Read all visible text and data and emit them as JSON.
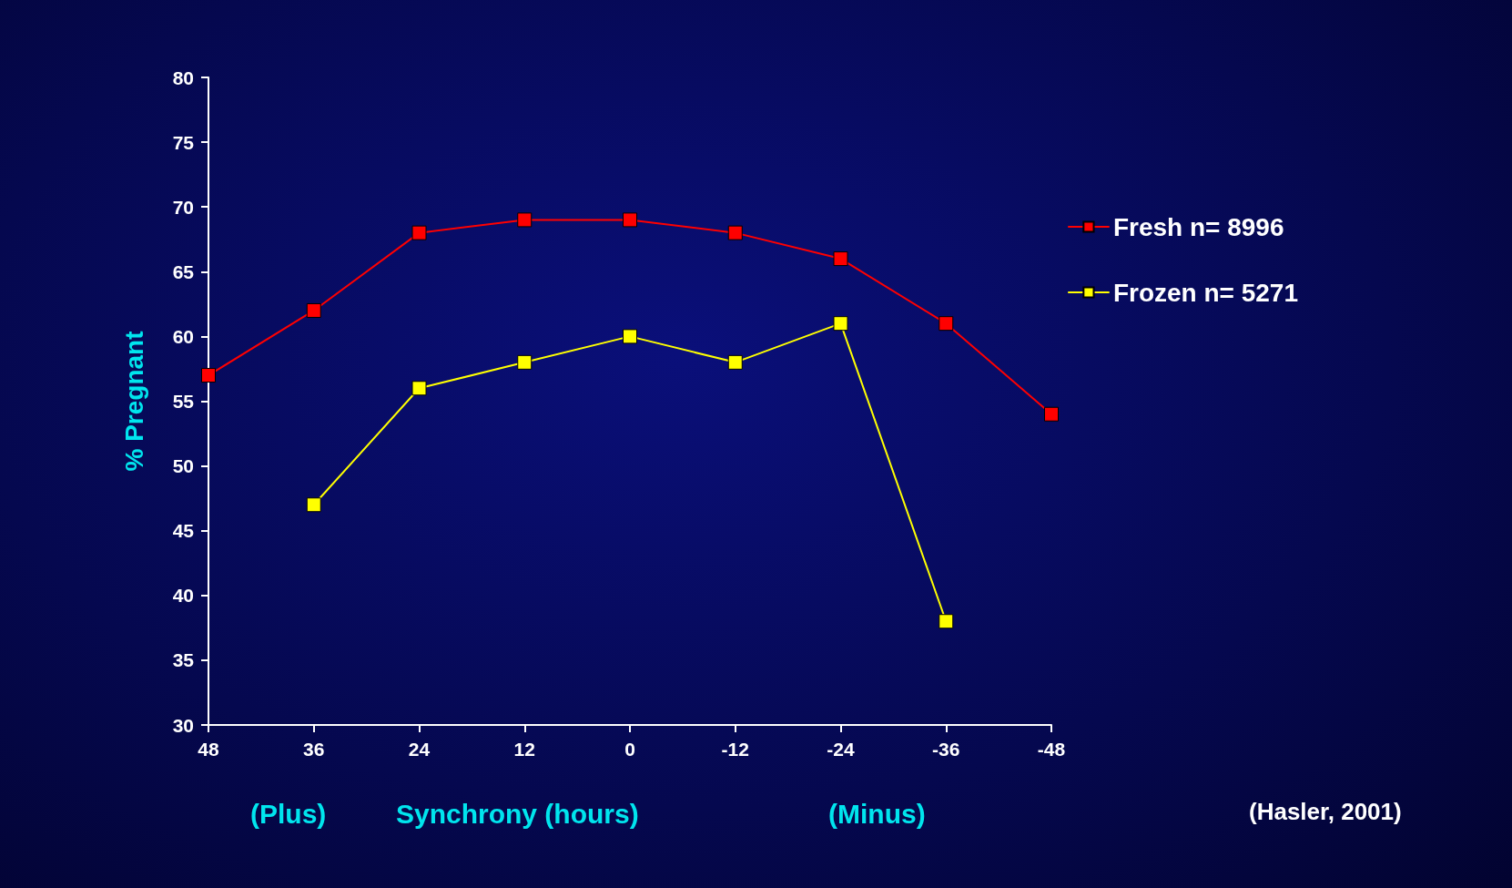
{
  "chart_data": {
    "type": "line",
    "xlabel": "Synchrony (hours)",
    "ylabel": "% Pregnant",
    "annotations": [
      "(Plus)",
      "(Minus)",
      "(Hasler, 2001)"
    ],
    "x": [
      48,
      36,
      24,
      12,
      0,
      -12,
      -24,
      -36,
      -48
    ],
    "series": [
      {
        "name": "Fresh n= 8996",
        "color": "#ff0000",
        "values": [
          57,
          62,
          68,
          69,
          69,
          68,
          66,
          61,
          54
        ]
      },
      {
        "name": "Frozen n= 5271",
        "color": "#ffff00",
        "values": [
          null,
          47,
          56,
          58,
          60,
          58,
          61,
          38,
          null
        ]
      }
    ],
    "xlim": [
      48,
      -48
    ],
    "xticks": [
      48,
      36,
      24,
      12,
      0,
      -12,
      -24,
      -36,
      -48
    ],
    "ylim": [
      30,
      80
    ],
    "yticks": [
      30,
      35,
      40,
      45,
      50,
      55,
      60,
      65,
      70,
      75,
      80
    ],
    "grid": false,
    "legend": "right",
    "marker": "square",
    "line_style": "solid"
  }
}
